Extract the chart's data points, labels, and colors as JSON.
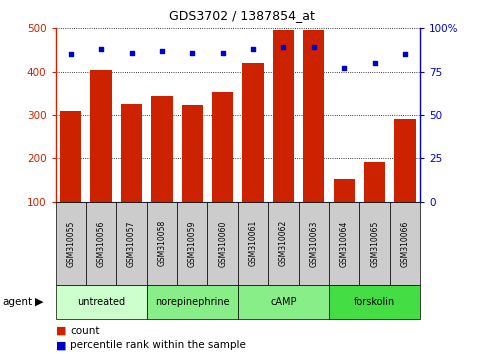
{
  "title": "GDS3702 / 1387854_at",
  "samples": [
    "GSM310055",
    "GSM310056",
    "GSM310057",
    "GSM310058",
    "GSM310059",
    "GSM310060",
    "GSM310061",
    "GSM310062",
    "GSM310063",
    "GSM310064",
    "GSM310065",
    "GSM310066"
  ],
  "counts": [
    310,
    403,
    325,
    345,
    323,
    353,
    420,
    497,
    495,
    152,
    192,
    290
  ],
  "percentile_ranks": [
    85,
    88,
    86,
    87,
    86,
    86,
    88,
    89,
    89,
    77,
    80,
    85
  ],
  "bar_color": "#cc2200",
  "dot_color": "#0000cc",
  "bar_bottom": 100,
  "ylim_left": [
    100,
    500
  ],
  "ylim_right": [
    0,
    100
  ],
  "yticks_left": [
    100,
    200,
    300,
    400,
    500
  ],
  "yticks_right": [
    0,
    25,
    50,
    75,
    100
  ],
  "yticklabels_right": [
    "0",
    "25",
    "50",
    "75",
    "100%"
  ],
  "agent_groups": [
    {
      "label": "untreated",
      "start": 0,
      "end": 3,
      "color": "#ccffcc"
    },
    {
      "label": "norepinephrine",
      "start": 3,
      "end": 6,
      "color": "#88ee88"
    },
    {
      "label": "cAMP",
      "start": 6,
      "end": 9,
      "color": "#88ee88"
    },
    {
      "label": "forskolin",
      "start": 9,
      "end": 12,
      "color": "#44dd44"
    }
  ],
  "xlabel_agent": "agent",
  "legend_count_label": "count",
  "legend_pct_label": "percentile rank within the sample",
  "left_axis_color": "#cc2200",
  "right_axis_color": "#0000cc",
  "background_xticklabel": "#cccccc"
}
